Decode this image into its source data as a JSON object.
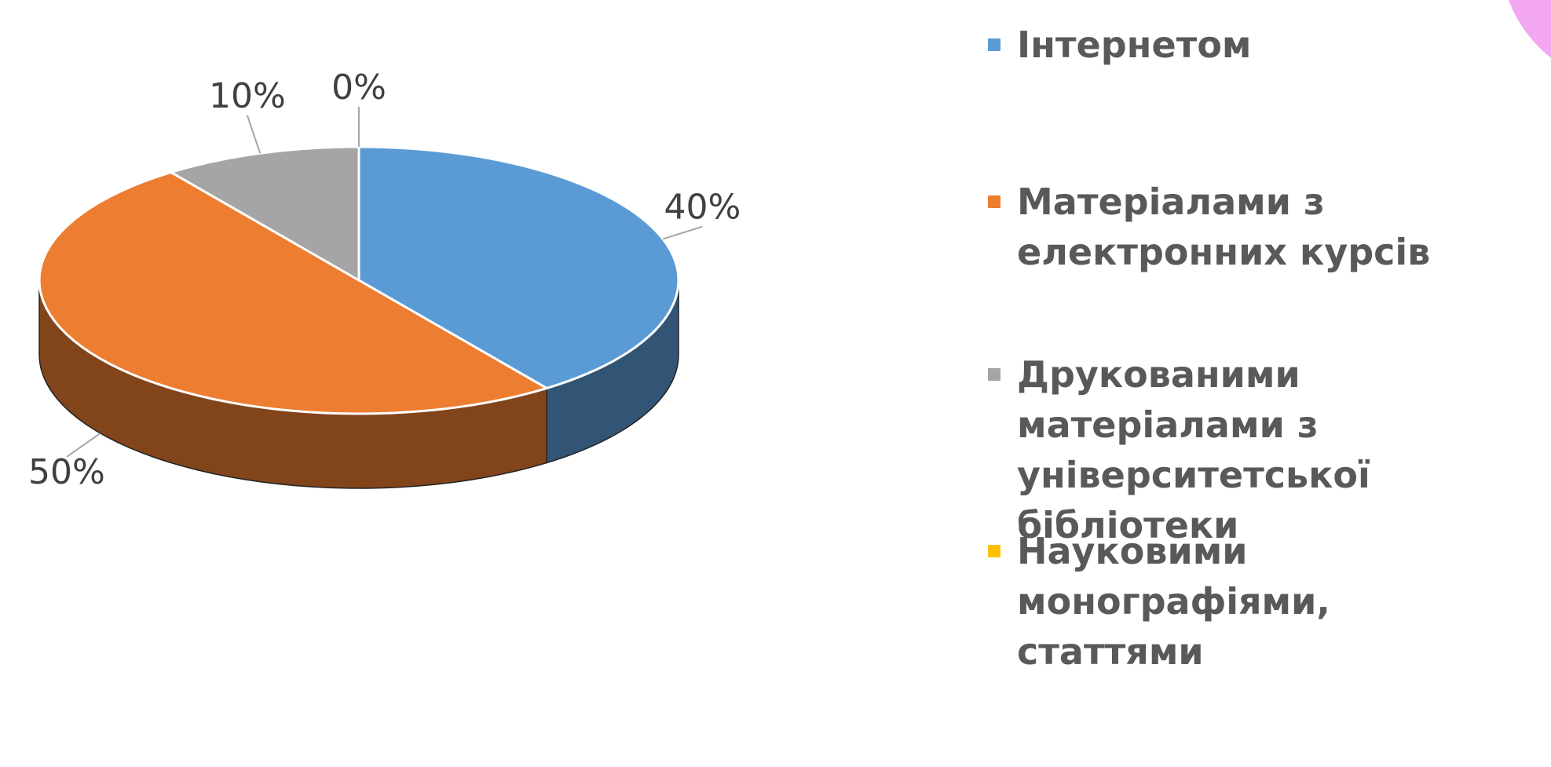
{
  "chart_data": {
    "type": "pie",
    "categories": [
      "Інтернетом",
      "Матеріалами з електронних курсів",
      "Друкованими матеріалами з університетської бібліотеки",
      "Науковими монографіями, статтями"
    ],
    "values": [
      40,
      50,
      10,
      0
    ],
    "value_labels": [
      "40%",
      "50%",
      "10%",
      "0%"
    ],
    "colors": [
      "#5b9bd5",
      "#ed7d31",
      "#a5a5a5",
      "#ffc000"
    ],
    "legend": "right"
  }
}
